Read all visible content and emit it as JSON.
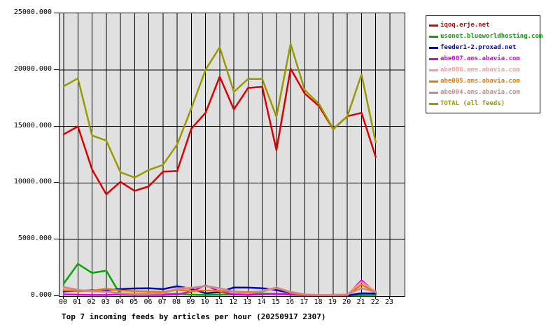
{
  "chart_data": {
    "type": "line",
    "title": "Top 7 incoming feeds by articles per hour (20250917 2307)",
    "xlabel": "",
    "ylabel": "",
    "ylim": [
      0,
      25000
    ],
    "grid": true,
    "plot_background": "#e0e0e0",
    "legend_position": "outside-top-right",
    "y_ticks": [
      "25000.000",
      "20000.000",
      "15000.000",
      "10000.000",
      "5000.000",
      "0.000"
    ],
    "x_labels": [
      "00",
      "01",
      "02",
      "03",
      "04",
      "05",
      "06",
      "07",
      "08",
      "09",
      "10",
      "11",
      "12",
      "13",
      "14",
      "15",
      "16",
      "17",
      "18",
      "19",
      "20",
      "21",
      "22",
      "23"
    ],
    "series": [
      {
        "name": "iqoq.erje.net",
        "color": "#dd0000",
        "values": [
          14300,
          15000,
          11200,
          9000,
          10100,
          9300,
          9700,
          11000,
          11050,
          14800,
          16200,
          19400,
          16500,
          18400,
          18500,
          12900,
          20100,
          17900,
          16800,
          14750,
          15900,
          16200,
          12300
        ]
      },
      {
        "name": "usenet.blueworldhosting.com",
        "color": "#00aa00",
        "values": [
          1100,
          2850,
          2050,
          2250,
          120,
          100,
          150,
          150,
          200,
          120,
          100,
          120,
          150,
          180,
          220,
          180,
          120,
          80,
          80,
          120,
          80,
          80,
          100
        ]
      },
      {
        "name": "feeder1-2.proxad.net",
        "color": "#0000cc",
        "values": [
          420,
          460,
          510,
          530,
          620,
          680,
          700,
          620,
          870,
          640,
          250,
          350,
          760,
          750,
          700,
          530,
          270,
          120,
          60,
          60,
          60,
          250,
          230
        ]
      },
      {
        "name": "abe007.ams.abavia.com",
        "color": "#dd00dd",
        "values": [
          150,
          120,
          100,
          100,
          150,
          100,
          100,
          100,
          150,
          400,
          950,
          400,
          150,
          100,
          150,
          200,
          150,
          80,
          60,
          60,
          80,
          1400,
          300
        ]
      },
      {
        "name": "abe006.ams.abavia.com",
        "color": "#ff9999",
        "values": [
          700,
          500,
          420,
          380,
          250,
          200,
          220,
          250,
          680,
          750,
          880,
          650,
          350,
          250,
          450,
          780,
          350,
          150,
          100,
          100,
          150,
          1250,
          400
        ]
      },
      {
        "name": "abe005.ams.abavia.com",
        "color": "#ee7700",
        "values": [
          500,
          450,
          480,
          650,
          500,
          450,
          400,
          380,
          540,
          450,
          500,
          450,
          400,
          350,
          400,
          740,
          300,
          100,
          80,
          80,
          100,
          1000,
          350
        ]
      },
      {
        "name": "abe004.ams.abavia.com",
        "color": "#cc8888",
        "values": [
          800,
          550,
          450,
          400,
          250,
          200,
          220,
          250,
          600,
          700,
          900,
          700,
          380,
          280,
          420,
          700,
          380,
          150,
          100,
          100,
          150,
          700,
          350
        ]
      },
      {
        "name": "TOTAL (all feeds)",
        "color": "#999900",
        "values": [
          18550,
          19250,
          14200,
          13750,
          10950,
          10480,
          11150,
          11600,
          13400,
          16600,
          20000,
          22000,
          18050,
          19200,
          19200,
          15850,
          22300,
          18200,
          17000,
          14780,
          15900,
          19600,
          13600
        ]
      }
    ]
  }
}
